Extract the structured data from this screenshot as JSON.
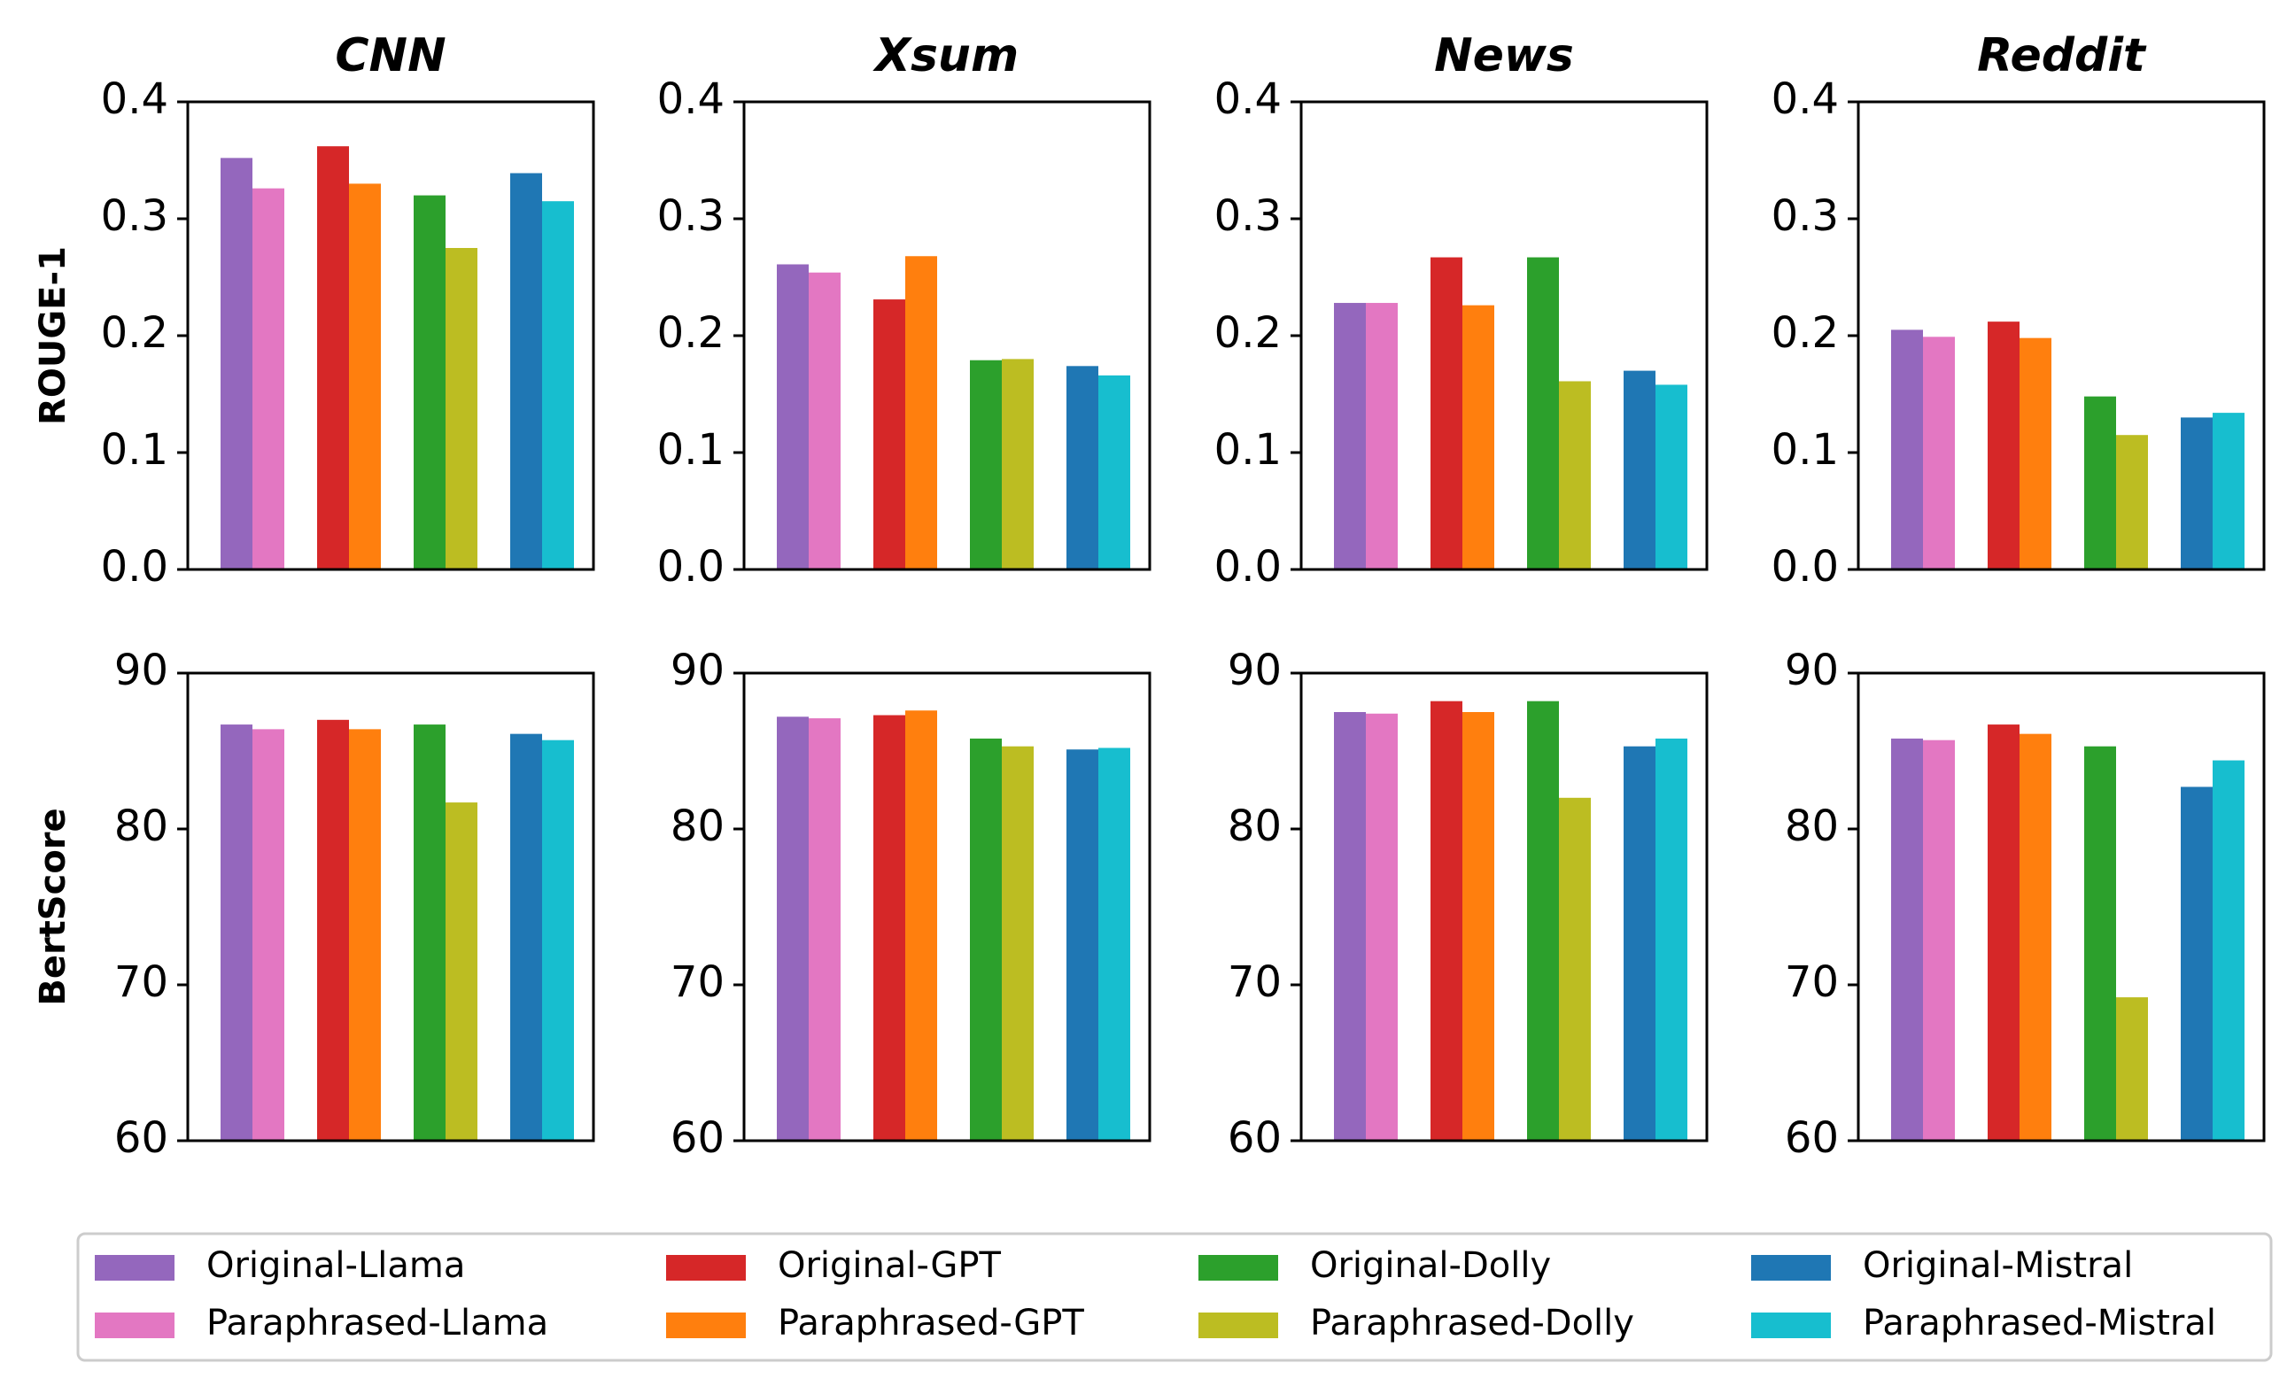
{
  "chart_data": {
    "type": "bar",
    "groups": [
      "Llama",
      "GPT",
      "Dolly",
      "Mistral"
    ],
    "series": [
      {
        "name": "Original-Llama",
        "color": "#9467bd",
        "group": 0,
        "slot": 0
      },
      {
        "name": "Paraphrased-Llama",
        "color": "#e377c2",
        "group": 0,
        "slot": 1
      },
      {
        "name": "Original-GPT",
        "color": "#d62728",
        "group": 1,
        "slot": 0
      },
      {
        "name": "Paraphrased-GPT",
        "color": "#ff7f0e",
        "group": 1,
        "slot": 1
      },
      {
        "name": "Original-Dolly",
        "color": "#2ca02c",
        "group": 2,
        "slot": 0
      },
      {
        "name": "Paraphrased-Dolly",
        "color": "#bcbd22",
        "group": 2,
        "slot": 1
      },
      {
        "name": "Original-Mistral",
        "color": "#1f77b4",
        "group": 3,
        "slot": 0
      },
      {
        "name": "Paraphrased-Mistral",
        "color": "#17becf",
        "group": 3,
        "slot": 1
      }
    ],
    "columns": [
      "CNN",
      "Xsum",
      "News",
      "Reddit"
    ],
    "rows": [
      {
        "metric": "ROUGE-1",
        "ylim": [
          0.0,
          0.4
        ],
        "yticks": [
          "0.0",
          "0.1",
          "0.2",
          "0.3",
          "0.4"
        ],
        "values": {
          "CNN": [
            0.352,
            0.326,
            0.362,
            0.33,
            0.32,
            0.275,
            0.339,
            0.315
          ],
          "Xsum": [
            0.261,
            0.254,
            0.231,
            0.268,
            0.179,
            0.18,
            0.174,
            0.166
          ],
          "News": [
            0.228,
            0.228,
            0.267,
            0.226,
            0.267,
            0.161,
            0.17,
            0.158
          ],
          "Reddit": [
            0.205,
            0.199,
            0.212,
            0.198,
            0.148,
            0.115,
            0.13,
            0.134
          ]
        }
      },
      {
        "metric": "BertScore",
        "ylim": [
          60,
          90
        ],
        "yticks": [
          "60",
          "70",
          "80",
          "90"
        ],
        "values": {
          "CNN": [
            86.7,
            86.4,
            87.0,
            86.4,
            86.7,
            81.7,
            86.1,
            85.7
          ],
          "Xsum": [
            87.2,
            87.1,
            87.3,
            87.6,
            85.8,
            85.3,
            85.1,
            85.2
          ],
          "News": [
            87.5,
            87.4,
            88.2,
            87.5,
            88.2,
            82.0,
            85.3,
            85.8
          ],
          "Reddit": [
            85.8,
            85.7,
            86.7,
            86.1,
            85.3,
            69.2,
            82.7,
            84.4
          ]
        }
      }
    ],
    "legend": {
      "placement": "bottom",
      "entries": [
        "Original-Llama",
        "Paraphrased-Llama",
        "Original-GPT",
        "Paraphrased-GPT",
        "Original-Dolly",
        "Paraphrased-Dolly",
        "Original-Mistral",
        "Paraphrased-Mistral"
      ]
    },
    "grid": false
  }
}
